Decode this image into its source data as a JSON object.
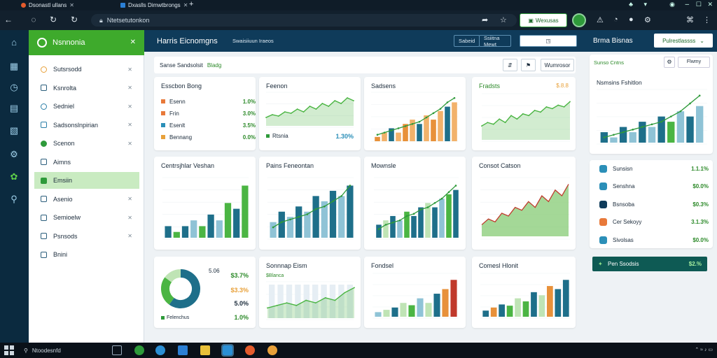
{
  "browser": {
    "tabs": [
      {
        "label": "Dsonastl ullans",
        "fav": "#e45b2c"
      },
      {
        "label": "Dxaslls Dimwtbrongs",
        "fav": "#2b7fd4"
      }
    ],
    "new_tab": "+",
    "url": "Ntetsetutonkon"
  },
  "extension": {
    "label": "Wexusas"
  },
  "rail": [
    {
      "icon": "home-icon",
      "glyph": "⌂"
    },
    {
      "icon": "chart-icon",
      "glyph": "▦"
    },
    {
      "icon": "clock-icon",
      "glyph": "◷"
    },
    {
      "icon": "doc-icon",
      "glyph": "▤"
    },
    {
      "icon": "clipboard-icon",
      "glyph": "▧"
    },
    {
      "icon": "settings-icon",
      "glyph": "⚙"
    },
    {
      "icon": "leaf-icon",
      "glyph": "✿"
    },
    {
      "icon": "search-icon",
      "glyph": "⚲"
    }
  ],
  "sidebar": {
    "title": "Nsnnonia",
    "items": [
      {
        "label": "Sutsrsodd",
        "color": "#e8a13a"
      },
      {
        "label": "Ksnrolta",
        "color": "#2b5e7c"
      },
      {
        "label": "Sedniel",
        "color": "#2b7fa8"
      },
      {
        "label": "Sadsonslnpirian",
        "color": "#2b7fa8"
      },
      {
        "label": "Scenon",
        "color": "#2e9a3a"
      },
      {
        "label": "Aimns",
        "color": "#2b5e7c"
      },
      {
        "label": "Emsiin",
        "color": "#2e9a3a"
      },
      {
        "label": "Asenio",
        "color": "#2b5e7c"
      },
      {
        "label": "Semioelw",
        "color": "#2b5e7c"
      },
      {
        "label": "Psnsods",
        "color": "#2b5e7c"
      },
      {
        "label": "Bnini",
        "color": "#2b5e7c"
      }
    ]
  },
  "main": {
    "title": "Harris Eicnomgns",
    "header_buttons": [
      "Swaisiiuun Iraeos",
      "Sabeid",
      "Ssiitna Mewt"
    ],
    "header_action": "◳",
    "filter": {
      "label": "Sanse Sandsolsit",
      "tag": "Bladg"
    },
    "filter_buttons": [
      "⇵",
      "⚑",
      "Wumrosor"
    ]
  },
  "cards": {
    "c1": {
      "title": "Esscbon Bong",
      "rows": [
        {
          "label": "Esenn",
          "value": "1.0%",
          "color": "#e8793a"
        },
        {
          "label": "Frin",
          "value": "3.0%",
          "color": "#e8793a"
        },
        {
          "label": "Esenlt",
          "value": "3.5%",
          "color": "#2b8fb8"
        },
        {
          "label": "Bennang",
          "value": "0.0%",
          "color": "#e8a13a"
        }
      ]
    },
    "c2": {
      "title": "Feenon",
      "legend": "Rtsnia",
      "value": "1.30%"
    },
    "c3": {
      "title": "Sadsens"
    },
    "c4": {
      "title": "Fradsts",
      "value": "$.8.8"
    },
    "c5": {
      "title": "Centrsjhlar Veshan"
    },
    "c6": {
      "title": "Pains Feneontan"
    },
    "c7": {
      "title": "Mownsle"
    },
    "c8": {
      "title": "Consot Catson"
    },
    "c9": {
      "values": [
        "5.06",
        "$3.7%",
        "$3.3%",
        "5.0%",
        "1.0%"
      ],
      "legend": "Felenchus"
    },
    "c10": {
      "title": "Sonnnap Eism",
      "legend": "$Blanca"
    },
    "c11": {
      "title": "Fondsel"
    },
    "c12": {
      "title": "Comesl Hlonit"
    }
  },
  "right": {
    "title": "Brma Bisnas",
    "dropdown": "Pulrestlassss",
    "card_head": "Sunso Cntns",
    "card_head_right": "Flwmy",
    "card_title": "Nsmsins Fshitlon",
    "items": [
      {
        "label": "Sunsisn",
        "value": "1.1.1%",
        "color": "#2b8fb8"
      },
      {
        "label": "Senshna",
        "value": "$0.0%",
        "color": "#2b8fb8"
      },
      {
        "label": "Bsnsoba",
        "value": "$0.3%",
        "color": "#0f3b5a"
      },
      {
        "label": "Cer Sekoyy",
        "value": "3.1.3%",
        "color": "#e8793a"
      },
      {
        "label": "Sivolsas",
        "value": "$0.0%",
        "color": "#2b8fb8"
      }
    ],
    "alert": {
      "label": "Pen Ssodsis",
      "value": "$2.%"
    }
  },
  "taskbar": {
    "search": "Ntoodesnfd",
    "tray": "⌃ ≈ ♪ ▭"
  },
  "chart_data": [
    {
      "type": "area",
      "title": "Feenon",
      "y": [
        3,
        4,
        3.5,
        5,
        4.5,
        6,
        5,
        7,
        6,
        8,
        7,
        9,
        8,
        10,
        9
      ]
    },
    {
      "type": "bar",
      "title": "Sadsens",
      "series": [
        {
          "name": "bars",
          "values": [
            1,
            2,
            3,
            2,
            4,
            5,
            4,
            6,
            5,
            7,
            8,
            9
          ]
        },
        {
          "name": "line",
          "values": [
            1.5,
            2,
            2.5,
            3,
            3.5,
            4,
            4.5,
            5.5,
            6.5,
            7.5,
            9,
            10
          ]
        }
      ]
    },
    {
      "type": "area",
      "title": "Fradsts",
      "y": [
        4,
        5,
        4.5,
        6,
        5,
        7,
        6,
        7.5,
        7,
        8.5,
        8,
        9.5,
        9,
        10,
        9.5,
        11
      ]
    },
    {
      "type": "bar",
      "title": "Centrsjhlar Veshan",
      "series": [
        {
          "name": "bars",
          "values": [
            2,
            1,
            2,
            3,
            2,
            4,
            3,
            6,
            5,
            9
          ]
        }
      ]
    },
    {
      "type": "bar",
      "title": "Pains Feneontan",
      "series": [
        {
          "name": "bars",
          "values": [
            3,
            5,
            4,
            6,
            5,
            8,
            7,
            9,
            8,
            10
          ]
        },
        {
          "name": "line",
          "values": [
            2,
            3,
            3.5,
            4,
            4.5,
            5.5,
            6,
            7,
            8,
            10
          ]
        }
      ]
    },
    {
      "type": "bar",
      "title": "Mownsle",
      "series": [
        {
          "name": "bars",
          "values": [
            3,
            4,
            5,
            4,
            6,
            5,
            7,
            8,
            7,
            9,
            10,
            11
          ]
        },
        {
          "name": "line",
          "values": [
            2,
            3,
            3.5,
            4,
            5,
            5.5,
            6.5,
            7,
            8,
            9,
            10.5,
            12
          ]
        }
      ]
    },
    {
      "type": "area",
      "title": "Consot Catson",
      "y": [
        2,
        3,
        2.5,
        4,
        3.5,
        5,
        4.5,
        6,
        5,
        7,
        6,
        8,
        7,
        9
      ]
    },
    {
      "type": "pie",
      "values": [
        60,
        25,
        15
      ]
    },
    {
      "type": "area",
      "title": "Sonnnap Eism",
      "y": [
        2,
        2.5,
        3,
        2.5,
        3.5,
        3,
        4,
        3.5,
        5,
        6
      ]
    },
    {
      "type": "bar",
      "title": "Fondsel",
      "series": [
        {
          "name": "bars",
          "values": [
            1,
            1.5,
            2,
            3,
            2.5,
            4,
            3,
            5,
            6,
            8
          ]
        }
      ]
    },
    {
      "type": "bar",
      "title": "Comesl Hlonit",
      "series": [
        {
          "name": "bars",
          "values": [
            1,
            1.5,
            2,
            1.8,
            3,
            2.5,
            4,
            3.5,
            5,
            4.5,
            6
          ]
        }
      ]
    },
    {
      "type": "bar",
      "title": "Nsmsins Fshitlon",
      "series": [
        {
          "name": "bars",
          "values": [
            2,
            1,
            3,
            2,
            4,
            3,
            5,
            4,
            6,
            5,
            7
          ]
        },
        {
          "name": "line",
          "values": [
            1,
            1.5,
            2,
            2.5,
            3,
            3.5,
            4,
            5,
            6,
            7.5,
            9
          ]
        }
      ]
    }
  ]
}
